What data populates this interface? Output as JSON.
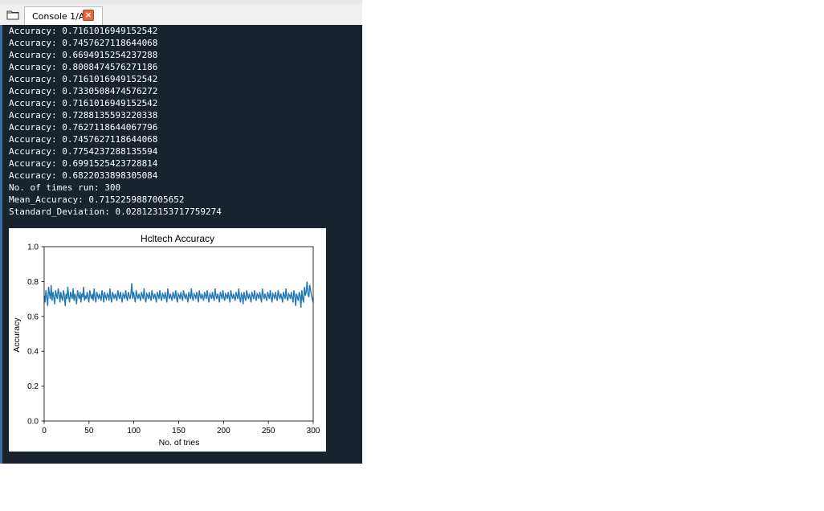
{
  "tabs": [
    {
      "label": "Console 1/A",
      "close_icon": "close-icon"
    }
  ],
  "console": {
    "lines": [
      "Accuracy: 0.7161016949152542",
      "Accuracy: 0.7457627118644068",
      "Accuracy: 0.6694915254237288",
      "Accuracy: 0.8008474576271186",
      "Accuracy: 0.7161016949152542",
      "Accuracy: 0.7330508474576272",
      "Accuracy: 0.7161016949152542",
      "Accuracy: 0.7288135593220338",
      "Accuracy: 0.7627118644067796",
      "Accuracy: 0.7457627118644068",
      "Accuracy: 0.7754237288135594",
      "Accuracy: 0.6991525423728814",
      "Accuracy: 0.6822033898305084",
      "No. of times run: 300",
      "Mean_Accuracy: 0.7152259887005652",
      "Standard_Deviation: 0.028123153717759274"
    ]
  },
  "chart_data": {
    "type": "line",
    "title": "Hcltech Accuracy",
    "xlabel": "No. of tries",
    "ylabel": "Accuracy",
    "xlim": [
      0,
      300
    ],
    "ylim": [
      0.0,
      1.0
    ],
    "xticks": [
      0,
      50,
      100,
      150,
      200,
      250,
      300
    ],
    "yticks": [
      0.0,
      0.2,
      0.4,
      0.6,
      0.8,
      1.0
    ],
    "xtick_labels": [
      "0",
      "50",
      "100",
      "150",
      "200",
      "250",
      "300"
    ],
    "ytick_labels": [
      "0.0",
      "0.2",
      "0.4",
      "0.6",
      "0.8",
      "1.0"
    ],
    "grid": false,
    "line_color": "#1f77b4",
    "series": [
      {
        "values": [
          0.72,
          0.68,
          0.75,
          0.71,
          0.66,
          0.77,
          0.73,
          0.7,
          0.78,
          0.69,
          0.74,
          0.71,
          0.67,
          0.75,
          0.72,
          0.7,
          0.76,
          0.73,
          0.68,
          0.74,
          0.71,
          0.69,
          0.75,
          0.72,
          0.66,
          0.73,
          0.7,
          0.77,
          0.71,
          0.68,
          0.74,
          0.72,
          0.7,
          0.76,
          0.69,
          0.73,
          0.71,
          0.67,
          0.75,
          0.72,
          0.7,
          0.74,
          0.68,
          0.73,
          0.71,
          0.77,
          0.69,
          0.72,
          0.7,
          0.74,
          0.71,
          0.68,
          0.75,
          0.72,
          0.7,
          0.73,
          0.69,
          0.76,
          0.71,
          0.68,
          0.74,
          0.72,
          0.7,
          0.73,
          0.71,
          0.69,
          0.75,
          0.72,
          0.68,
          0.74,
          0.71,
          0.7,
          0.73,
          0.72,
          0.69,
          0.76,
          0.71,
          0.68,
          0.74,
          0.72,
          0.7,
          0.73,
          0.71,
          0.69,
          0.75,
          0.72,
          0.7,
          0.74,
          0.71,
          0.68,
          0.73,
          0.72,
          0.7,
          0.75,
          0.71,
          0.69,
          0.74,
          0.72,
          0.7,
          0.73,
          0.79,
          0.7,
          0.74,
          0.71,
          0.68,
          0.75,
          0.72,
          0.7,
          0.73,
          0.71,
          0.69,
          0.74,
          0.72,
          0.7,
          0.76,
          0.71,
          0.68,
          0.73,
          0.72,
          0.7,
          0.74,
          0.71,
          0.69,
          0.75,
          0.72,
          0.7,
          0.73,
          0.71,
          0.68,
          0.74,
          0.72,
          0.7,
          0.75,
          0.71,
          0.69,
          0.73,
          0.72,
          0.7,
          0.74,
          0.71,
          0.68,
          0.76,
          0.72,
          0.7,
          0.73,
          0.71,
          0.69,
          0.74,
          0.72,
          0.7,
          0.75,
          0.71,
          0.68,
          0.73,
          0.72,
          0.7,
          0.74,
          0.71,
          0.69,
          0.75,
          0.72,
          0.7,
          0.73,
          0.71,
          0.68,
          0.74,
          0.72,
          0.7,
          0.76,
          0.71,
          0.69,
          0.73,
          0.72,
          0.7,
          0.74,
          0.71,
          0.68,
          0.75,
          0.72,
          0.7,
          0.73,
          0.71,
          0.69,
          0.74,
          0.72,
          0.7,
          0.75,
          0.71,
          0.68,
          0.73,
          0.72,
          0.7,
          0.74,
          0.71,
          0.69,
          0.76,
          0.72,
          0.7,
          0.73,
          0.71,
          0.68,
          0.74,
          0.72,
          0.7,
          0.75,
          0.71,
          0.69,
          0.73,
          0.72,
          0.7,
          0.74,
          0.71,
          0.68,
          0.75,
          0.72,
          0.7,
          0.73,
          0.71,
          0.69,
          0.74,
          0.72,
          0.7,
          0.76,
          0.71,
          0.68,
          0.73,
          0.72,
          0.67,
          0.74,
          0.71,
          0.69,
          0.75,
          0.72,
          0.7,
          0.73,
          0.71,
          0.68,
          0.74,
          0.72,
          0.7,
          0.75,
          0.71,
          0.69,
          0.73,
          0.72,
          0.7,
          0.74,
          0.71,
          0.68,
          0.76,
          0.72,
          0.7,
          0.73,
          0.71,
          0.69,
          0.74,
          0.72,
          0.7,
          0.75,
          0.71,
          0.68,
          0.73,
          0.72,
          0.7,
          0.74,
          0.71,
          0.69,
          0.75,
          0.72,
          0.7,
          0.73,
          0.71,
          0.68,
          0.74,
          0.72,
          0.7,
          0.76,
          0.71,
          0.69,
          0.73,
          0.72,
          0.7,
          0.74,
          0.71,
          0.68,
          0.75,
          0.72,
          0.66,
          0.73,
          0.71,
          0.69,
          0.74,
          0.72,
          0.65,
          0.75,
          0.7,
          0.68,
          0.77,
          0.72,
          0.74,
          0.8,
          0.73,
          0.71,
          0.78,
          0.75,
          0.72,
          0.7,
          0.68
        ]
      }
    ]
  }
}
